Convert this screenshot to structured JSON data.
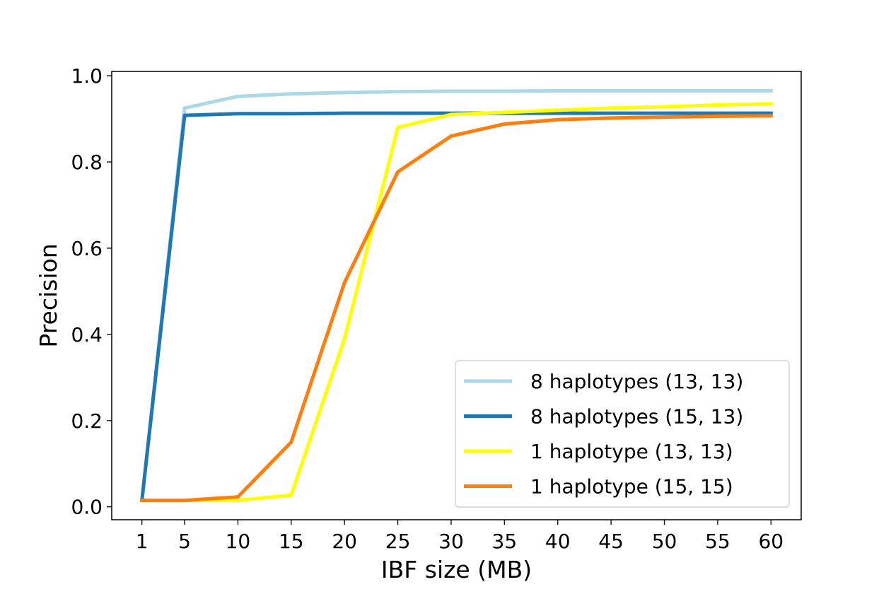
{
  "chart_data": {
    "type": "line",
    "xlabel": "IBF size (MB)",
    "ylabel": "Precision",
    "x": [
      1,
      5,
      10,
      15,
      20,
      25,
      30,
      35,
      40,
      45,
      50,
      55,
      60
    ],
    "x_tick_labels": [
      "1",
      "5",
      "10",
      "15",
      "20",
      "25",
      "30",
      "35",
      "40",
      "45",
      "50",
      "55",
      "60"
    ],
    "y_ticks": [
      0.0,
      0.2,
      0.4,
      0.6,
      0.8,
      1.0
    ],
    "y_tick_labels": [
      "0.0",
      "0.2",
      "0.4",
      "0.6",
      "0.8",
      "1.0"
    ],
    "ylim": [
      -0.03,
      1.01
    ],
    "grid": false,
    "legend_position": "lower-right",
    "series": [
      {
        "name": "8 haplotypes (13, 13)",
        "color": "#add8e6",
        "values": [
          0.015,
          0.925,
          0.952,
          0.958,
          0.961,
          0.963,
          0.964,
          0.964,
          0.965,
          0.965,
          0.965,
          0.965,
          0.965
        ]
      },
      {
        "name": "8 haplotypes (15, 13)",
        "color": "#1f77b4",
        "values": [
          0.015,
          0.908,
          0.912,
          0.912,
          0.913,
          0.913,
          0.913,
          0.913,
          0.913,
          0.913,
          0.913,
          0.913,
          0.913
        ]
      },
      {
        "name": "1 haplotype (13, 13)",
        "color": "#ffff00",
        "values": [
          0.015,
          0.015,
          0.015,
          0.027,
          0.39,
          0.88,
          0.91,
          0.915,
          0.92,
          0.925,
          0.928,
          0.932,
          0.935
        ]
      },
      {
        "name": "1 haplotype (15, 15)",
        "color": "#ff7f0e",
        "values": [
          0.015,
          0.015,
          0.023,
          0.15,
          0.52,
          0.777,
          0.86,
          0.888,
          0.898,
          0.902,
          0.904,
          0.906,
          0.907
        ]
      }
    ]
  }
}
